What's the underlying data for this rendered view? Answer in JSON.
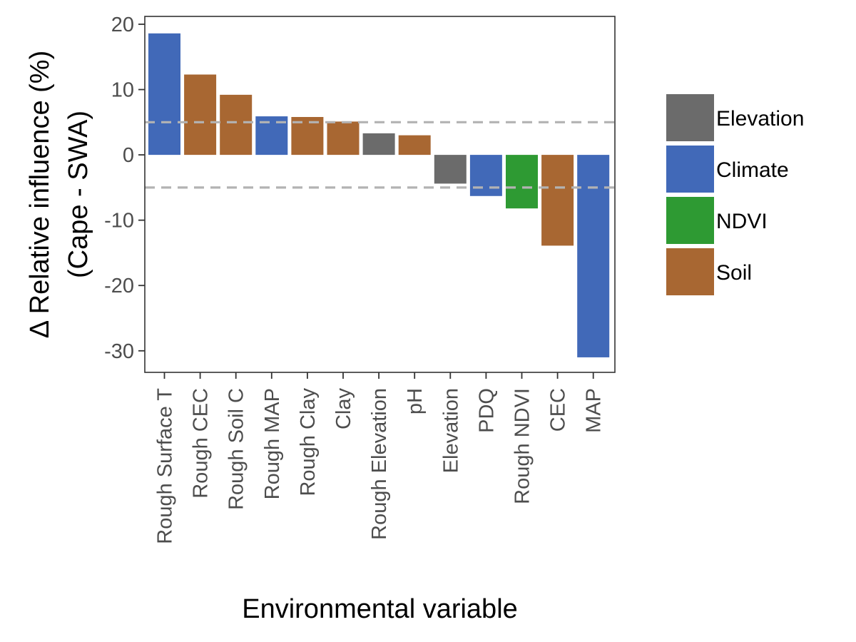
{
  "chart_data": {
    "type": "bar",
    "categories": [
      "Rough Surface T",
      "Rough CEC",
      "Rough Soil C",
      "Rough MAP",
      "Rough Clay",
      "Clay",
      "Rough Elevation",
      "pH",
      "Elevation",
      "PDQ",
      "Rough NDVI",
      "CEC",
      "MAP"
    ],
    "values": [
      18.6,
      12.3,
      9.2,
      5.9,
      5.8,
      5.1,
      3.3,
      3.0,
      -4.4,
      -6.3,
      -8.2,
      -13.9,
      -31.0
    ],
    "groups": [
      "Climate",
      "Soil",
      "Soil",
      "Climate",
      "Soil",
      "Soil",
      "Elevation",
      "Soil",
      "Elevation",
      "Climate",
      "NDVI",
      "Soil",
      "Climate"
    ],
    "xlabel": "Environmental variable",
    "ylabel_line1": "Δ Relative influence (%)",
    "ylabel_line2": "(Cape - SWA)",
    "ylim": [
      -33.3,
      21.2
    ],
    "yticks": [
      20,
      10,
      0,
      -10,
      -20,
      -30
    ],
    "ytick_labels": [
      "20",
      "10",
      "0",
      "-10",
      "-20",
      "-30"
    ],
    "reference_lines": [
      5,
      -5
    ],
    "grid": false,
    "legend": {
      "position": "right",
      "entries": [
        {
          "name": "Elevation",
          "color": "#6b6b6b"
        },
        {
          "name": "Climate",
          "color": "#4169b8"
        },
        {
          "name": "NDVI",
          "color": "#2e9a33"
        },
        {
          "name": "Soil",
          "color": "#a86732"
        }
      ]
    },
    "reference_line_color": "#b3b3b3"
  }
}
